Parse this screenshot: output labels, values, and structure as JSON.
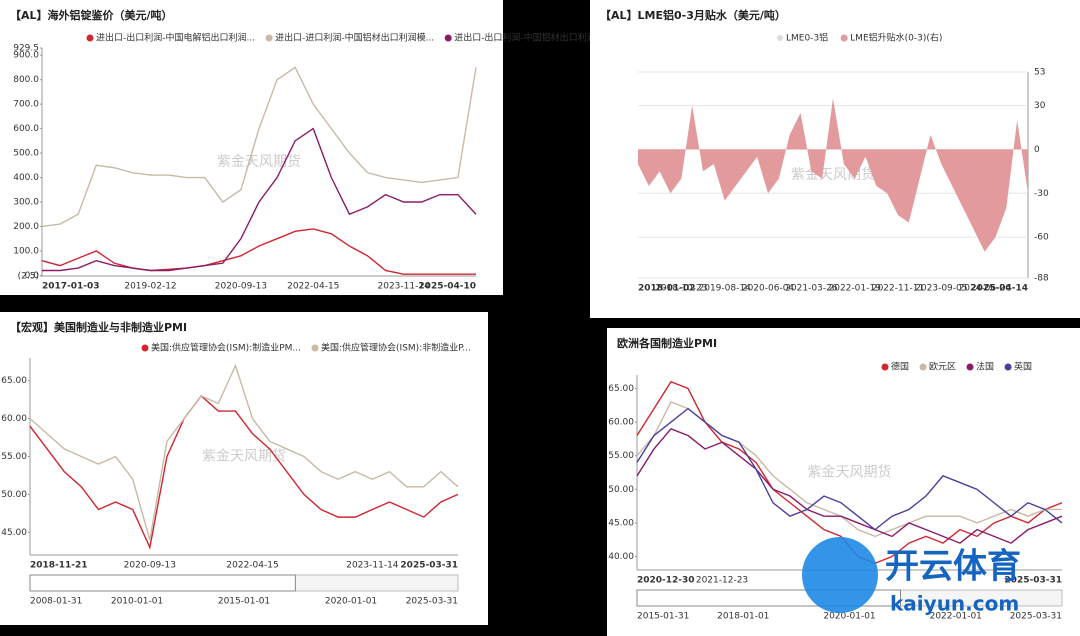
{
  "chart_data": [
    {
      "type": "line",
      "title": "【AL】海外铝锭鉴价（美元/吨）",
      "watermark": "紫金天风期货",
      "categories": [
        "2017-01-03",
        null,
        null,
        null,
        null,
        null,
        "2019-02-12",
        null,
        null,
        null,
        null,
        "2020-09-13",
        null,
        null,
        null,
        "2022-04-15",
        null,
        null,
        null,
        null,
        "2023-11-14",
        null,
        null,
        null,
        "2025-04-10"
      ],
      "series": [
        {
          "name": "进出口-出口利润-中国电解铝出口利润...",
          "color": "#d0262f",
          "values": [
            60,
            40,
            70,
            100,
            50,
            30,
            20,
            25,
            30,
            40,
            60,
            80,
            120,
            150,
            180,
            190,
            170,
            120,
            80,
            20,
            5,
            5,
            5,
            5,
            5
          ]
        },
        {
          "name": "进出口-进口利润-中国铝材出口利润模...",
          "color": "#c9b9a6",
          "values": [
            200,
            210,
            250,
            450,
            440,
            420,
            410,
            410,
            400,
            400,
            300,
            350,
            600,
            800,
            850,
            700,
            600,
            500,
            420,
            400,
            390,
            380,
            390,
            400,
            850
          ]
        },
        {
          "name": "进出口-出口利润-中国铝材出口利润模...",
          "color": "#8b1a6b",
          "values": [
            20,
            20,
            30,
            60,
            40,
            30,
            20,
            20,
            30,
            40,
            50,
            150,
            300,
            400,
            550,
            600,
            400,
            250,
            280,
            330,
            300,
            300,
            330,
            330,
            250
          ]
        }
      ],
      "ylim": [
        -2.5,
        929.5
      ],
      "yticks": [
        {
          "value": -2.5,
          "label": "(2.5)"
        },
        {
          "value": 0,
          "label": "0.0"
        },
        {
          "value": 100,
          "label": "100.0"
        },
        {
          "value": 200,
          "label": "200.0"
        },
        {
          "value": 300,
          "label": "300.0"
        },
        {
          "value": 400,
          "label": "400.0"
        },
        {
          "value": 500,
          "label": "500.0"
        },
        {
          "value": 600,
          "label": "600.0"
        },
        {
          "value": 700,
          "label": "700.0"
        },
        {
          "value": 800,
          "label": "800.0"
        },
        {
          "value": 900,
          "label": "900.0"
        },
        929.5
      ],
      "grid": false
    },
    {
      "type": "area",
      "title": "【AL】LME铝0-3月贴水（美元/吨）",
      "watermark": "紫金天风期货",
      "disabled_legend": "LME0-3铝",
      "categories": [
        "2018-01-02",
        null,
        null,
        null,
        "2018-10-23",
        null,
        null,
        null,
        "2019-08-14",
        null,
        null,
        null,
        "2020-06-04",
        null,
        null,
        null,
        "2021-03-26",
        null,
        null,
        null,
        "2022-01-19",
        null,
        null,
        null,
        "2022-11-11",
        null,
        null,
        null,
        "2023-09-05",
        null,
        null,
        null,
        "2024-06-26",
        null,
        null,
        null,
        "2025-04-14"
      ],
      "series": [
        {
          "name": "LME铝升贴水(0-3)(右)",
          "color": "#e39a9c",
          "values": [
            -10,
            -25,
            -15,
            -30,
            -20,
            30,
            -15,
            -10,
            -35,
            -25,
            -15,
            -5,
            -30,
            -20,
            10,
            25,
            -15,
            -20,
            35,
            -10,
            -20,
            -5,
            -25,
            -30,
            -45,
            -50,
            -20,
            10,
            -10,
            -25,
            -40,
            -55,
            -70,
            -60,
            -40,
            20,
            -30
          ]
        }
      ],
      "ylim": [
        -88,
        53
      ],
      "yticks": [
        53,
        30,
        0,
        -30,
        -60,
        -88
      ],
      "grid": true
    },
    {
      "type": "line",
      "title": "【宏观】美国制造业与非制造业PMI",
      "watermark": "紫金天风期货",
      "categories": [
        "2018-11-21",
        null,
        null,
        null,
        null,
        null,
        null,
        "2020-09-13",
        null,
        null,
        null,
        null,
        null,
        "2022-04-15",
        null,
        null,
        null,
        null,
        null,
        null,
        "2023-11-14",
        null,
        null,
        null,
        null,
        "2025-03-31"
      ],
      "series": [
        {
          "name": "美国:供应管理协会(ISM):制造业PM...",
          "color": "#d0262f",
          "values": [
            59,
            56,
            53,
            51,
            48,
            49,
            48,
            43,
            55,
            60,
            63,
            61,
            61,
            58,
            56,
            53,
            50,
            48,
            47,
            47,
            48,
            49,
            48,
            47,
            49,
            50
          ]
        },
        {
          "name": "美国:供应管理协会(ISM):非制造业P...",
          "color": "#c9b9a6",
          "values": [
            60,
            58,
            56,
            55,
            54,
            55,
            52,
            44,
            57,
            60,
            63,
            62,
            67,
            60,
            57,
            56,
            55,
            53,
            52,
            53,
            52,
            53,
            51,
            51,
            53,
            51
          ]
        }
      ],
      "ylim": [
        42,
        68
      ],
      "yticks": [
        {
          "value": 45,
          "label": "45.00"
        },
        {
          "value": 50,
          "label": "50.00"
        },
        {
          "value": 55,
          "label": "55.00"
        },
        {
          "value": 60,
          "label": "60.00"
        },
        {
          "value": 65,
          "label": "65.00"
        }
      ],
      "grid": false,
      "navigator_labels": [
        "2008-01-31",
        "2010-01-01",
        "2015-01-01",
        "2020-01-01",
        "2025-03-31"
      ]
    },
    {
      "type": "line",
      "title": "欧洲各国制造业PMI",
      "watermark": "紫金天风期货",
      "categories": [
        "2020-12-30",
        null,
        null,
        null,
        null,
        "2021-12-23",
        null,
        null,
        null,
        null,
        null,
        null,
        null,
        null,
        null,
        null,
        null,
        null,
        null,
        null,
        null,
        null,
        null,
        null,
        null,
        "2025-03-31"
      ],
      "series": [
        {
          "name": "德国",
          "color": "#d0262f",
          "values": [
            58,
            62,
            66,
            65,
            60,
            57,
            56,
            54,
            50,
            48,
            46,
            44,
            43,
            40,
            39,
            40,
            42,
            43,
            42,
            44,
            43,
            45,
            46,
            45,
            47,
            48
          ]
        },
        {
          "name": "欧元区",
          "color": "#c9b9a6",
          "values": [
            55,
            58,
            63,
            62,
            60,
            58,
            57,
            55,
            52,
            50,
            48,
            47,
            46,
            44,
            43,
            44,
            45,
            46,
            46,
            46,
            45,
            46,
            47,
            46,
            47,
            47
          ]
        },
        {
          "name": "法国",
          "color": "#8b1a6b",
          "values": [
            52,
            56,
            59,
            58,
            56,
            57,
            55,
            53,
            50,
            49,
            47,
            46,
            46,
            45,
            44,
            43,
            45,
            44,
            43,
            42,
            44,
            43,
            42,
            44,
            45,
            46
          ]
        },
        {
          "name": "英国",
          "color": "#4b3f9e",
          "values": [
            54,
            58,
            60,
            62,
            60,
            58,
            57,
            53,
            48,
            46,
            47,
            49,
            48,
            46,
            44,
            46,
            47,
            49,
            52,
            51,
            50,
            48,
            46,
            48,
            47,
            45
          ]
        }
      ],
      "ylim": [
        38,
        67
      ],
      "yticks": [
        {
          "value": 40,
          "label": "40.00"
        },
        {
          "value": 45,
          "label": "45.00"
        },
        {
          "value": 50,
          "label": "50.00"
        },
        {
          "value": 55,
          "label": "55.00"
        },
        {
          "value": 60,
          "label": "60.00"
        },
        {
          "value": 65,
          "label": "65.00"
        }
      ],
      "grid": false,
      "navigator_labels": [
        "2015-01-31",
        "2018-01-01",
        "2020-01-01",
        "2022-01-01",
        "2025-03-31"
      ]
    }
  ],
  "logo": {
    "name": "开云体育",
    "url": "kaiyun.com"
  }
}
